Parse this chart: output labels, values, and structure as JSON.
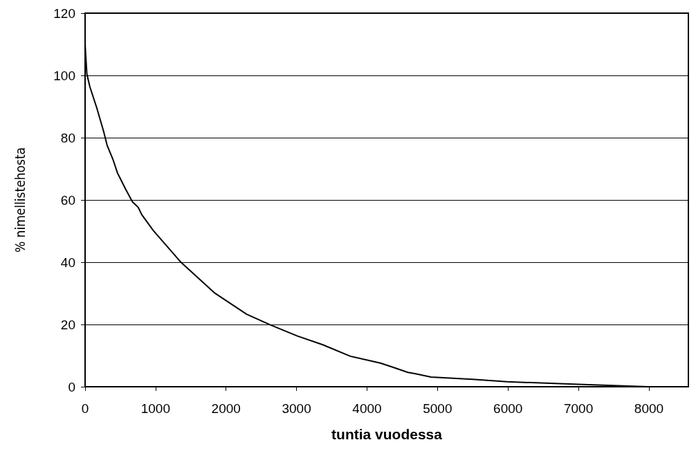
{
  "chart_data": {
    "type": "line",
    "xlabel": "tuntia vuodessa",
    "ylabel": "% nimellistehosta",
    "x": [
      0,
      25,
      67,
      165,
      263,
      312,
      394,
      459,
      574,
      672,
      754,
      803,
      967,
      1359,
      1833,
      2291,
      2635,
      3011,
      3371,
      3763,
      4188,
      4352,
      4580,
      4679,
      4908,
      5497,
      5987,
      7002,
      8000
    ],
    "series": [
      {
        "color": "#000000",
        "values": [
          110,
          100.5,
          96.4,
          89.6,
          82,
          77.6,
          73.1,
          68.7,
          63.5,
          59.4,
          57.6,
          55.3,
          50.2,
          40,
          30.2,
          23.3,
          19.8,
          16.3,
          13.5,
          9.8,
          7.6,
          6.4,
          4.6,
          4.2,
          3.1,
          2.4,
          1.6,
          0.8,
          0
        ]
      }
    ],
    "xlim": [
      0,
      8560
    ],
    "xticks": [
      0,
      1000,
      2000,
      3000,
      4000,
      5000,
      6000,
      7000,
      8000
    ],
    "ylim": [
      0,
      120
    ],
    "yticks": [
      0,
      20,
      40,
      60,
      80,
      100,
      120
    ],
    "grid": "y",
    "marker": "none",
    "line_style": "solid"
  }
}
